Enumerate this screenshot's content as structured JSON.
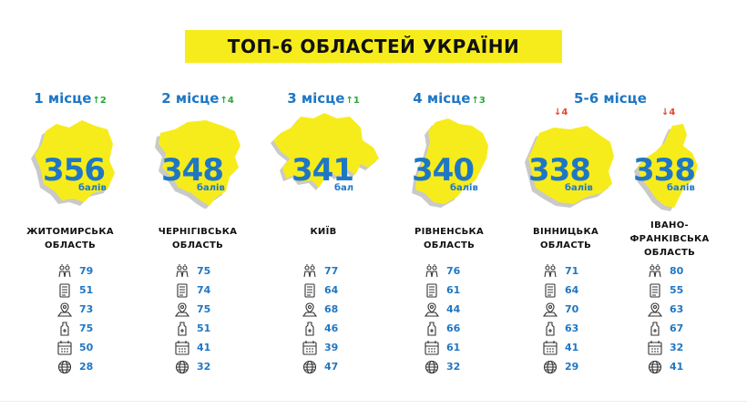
{
  "title": "ТОП-6 ОБЛАСТЕЙ УКРАЇНИ",
  "colors": {
    "yellow": "#f7ec1b",
    "blue": "#1f77c4",
    "up": "#2aa838",
    "down": "#e8452c",
    "shadow": "#c9c9c9"
  },
  "stat_icons": [
    "pediatrics-icon",
    "document-icon",
    "medical-transport-icon",
    "hygiene-icon",
    "calendar-icon",
    "web-icon"
  ],
  "regions": [
    {
      "rank": "1 місце",
      "delta": "↑2",
      "score": "356",
      "unit": "балів",
      "name": [
        "ЖИТОМИРСЬКА",
        "ОБЛАСТЬ"
      ],
      "stats": [
        "79",
        "51",
        "73",
        "75",
        "50",
        "28"
      ]
    },
    {
      "rank": "2 місце",
      "delta": "↑4",
      "score": "348",
      "unit": "балів",
      "name": [
        "ЧЕРНІГІВСЬКА",
        "ОБЛАСТЬ"
      ],
      "stats": [
        "75",
        "74",
        "75",
        "51",
        "41",
        "32"
      ]
    },
    {
      "rank": "3 місце",
      "delta": "↑1",
      "score": "341",
      "unit": "бал",
      "name": [
        "КИЇВ"
      ],
      "stats": [
        "77",
        "64",
        "68",
        "46",
        "39",
        "47"
      ]
    },
    {
      "rank": "4 місце",
      "delta": "↑3",
      "score": "340",
      "unit": "балів",
      "name": [
        "РІВНЕНСЬКА",
        "ОБЛАСТЬ"
      ],
      "stats": [
        "76",
        "61",
        "44",
        "66",
        "61",
        "32"
      ]
    },
    {
      "rank": "5-6 місце",
      "delta": "↓4",
      "score": "338",
      "unit": "балів",
      "name": [
        "ВІННИЦЬКА",
        "ОБЛАСТЬ"
      ],
      "stats": [
        "71",
        "64",
        "70",
        "63",
        "41",
        "29"
      ]
    },
    {
      "rank": "",
      "delta": "↓4",
      "score": "338",
      "unit": "балів",
      "name": [
        "ІВАНО-",
        "ФРАНКІВСЬКА",
        "ОБЛАСТЬ"
      ],
      "stats": [
        "80",
        "55",
        "63",
        "67",
        "32",
        "41"
      ]
    }
  ]
}
